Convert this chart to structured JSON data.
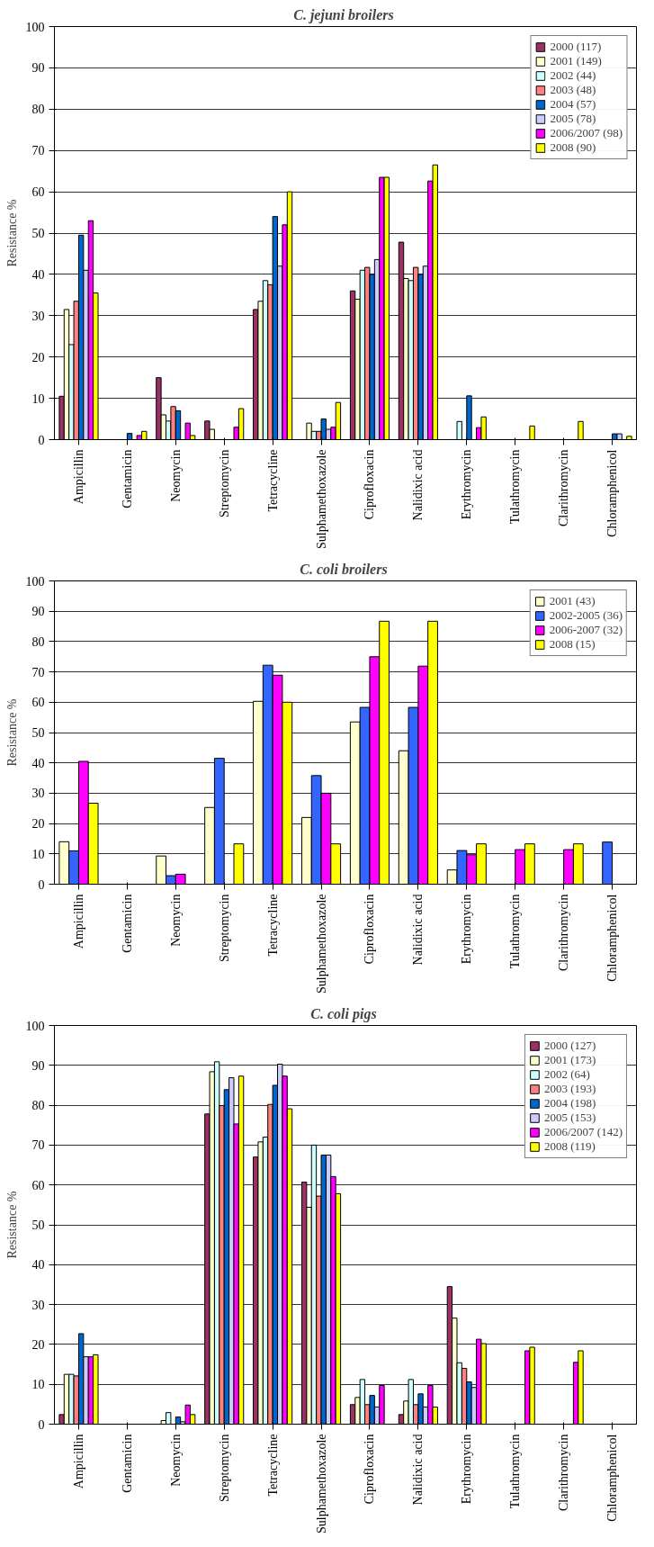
{
  "chart_data": [
    {
      "type": "bar",
      "title": "C. jejuni  broilers",
      "ylabel": "Resistance %",
      "categories": [
        "Ampicillin",
        "Gentamicin",
        "Neomycin",
        "Streptomycin",
        "Tetracycline",
        "Sulphamethoxazole",
        "Ciprofloxacin",
        "Nalidixic acid",
        "Erythromycin",
        "Tulathromycin",
        "Clarithromycin",
        "Chloramphenicol"
      ],
      "ylim": [
        0,
        100
      ],
      "yticks": [
        0,
        10,
        20,
        30,
        40,
        50,
        60,
        70,
        80,
        90,
        100
      ],
      "grid": "y",
      "legend": "top right",
      "series": [
        {
          "name": "2000 (117)",
          "color": "#993366",
          "values": [
            10.5,
            null,
            15,
            4.5,
            31.5,
            null,
            36,
            47.8,
            null,
            null,
            null,
            null
          ]
        },
        {
          "name": "2001 (149)",
          "color": "#ffffcc",
          "values": [
            31.5,
            null,
            6,
            2.5,
            33.5,
            4,
            34,
            39,
            null,
            null,
            null,
            null
          ]
        },
        {
          "name": "2002 (44)",
          "color": "#ccffff",
          "values": [
            23,
            null,
            4.5,
            null,
            38.5,
            2,
            41,
            38.5,
            4.4,
            null,
            null,
            null
          ]
        },
        {
          "name": "2003 (48)",
          "color": "#ff8080",
          "values": [
            33.5,
            null,
            8,
            null,
            37.5,
            2,
            41.7,
            41.7,
            null,
            null,
            null,
            null
          ]
        },
        {
          "name": "2004 (57)",
          "color": "#0066cc",
          "values": [
            49.5,
            1.5,
            7,
            null,
            54,
            5,
            40,
            40,
            10.6,
            null,
            null,
            1.4
          ]
        },
        {
          "name": "2005 (78)",
          "color": "#ccccff",
          "values": [
            41,
            null,
            null,
            null,
            42,
            2.5,
            43.6,
            42,
            null,
            null,
            null,
            1.4
          ]
        },
        {
          "name": "2006/2007 (98)",
          "color": "#ff00ff",
          "values": [
            53,
            1,
            4,
            3,
            52,
            3,
            63.5,
            62.6,
            2.9,
            null,
            null,
            null
          ]
        },
        {
          "name": "2008 (90)",
          "color": "#ffff00",
          "values": [
            35.5,
            2,
            1,
            7.5,
            60,
            9,
            63.5,
            66.5,
            5.5,
            3.3,
            4.4,
            0.8
          ]
        }
      ]
    },
    {
      "type": "bar",
      "title": "C. coli  broilers",
      "ylabel": "Resistance %",
      "categories": [
        "Ampicillin",
        "Gentamicin",
        "Neomycin",
        "Streptomycin",
        "Tetracycline",
        "Sulphamethoxazole",
        "Ciprofloxacin",
        "Nalidixic acid",
        "Erythromycin",
        "Tulathromycin",
        "Clarithromycin",
        "Chloramphenicol"
      ],
      "ylim": [
        0,
        100
      ],
      "yticks": [
        0,
        10,
        20,
        30,
        40,
        50,
        60,
        70,
        80,
        90,
        100
      ],
      "grid": "y",
      "legend": "top right",
      "series": [
        {
          "name": "2001 (43)",
          "color": "#ffffcc",
          "values": [
            14,
            null,
            9.3,
            25.3,
            60.3,
            22,
            53.5,
            44,
            4.7,
            null,
            null,
            null
          ]
        },
        {
          "name": "2002-2005 (36)",
          "color": "#3366ff",
          "values": [
            11,
            null,
            2.8,
            41.5,
            72.2,
            35.8,
            58.3,
            58.3,
            11.1,
            null,
            null,
            13.9
          ]
        },
        {
          "name": "2006-2007 (32)",
          "color": "#ff00ff",
          "values": [
            40.5,
            null,
            3.3,
            null,
            68.9,
            30,
            75,
            71.9,
            9.7,
            11.4,
            11.4,
            null
          ]
        },
        {
          "name": "2008 (15)",
          "color": "#ffff00",
          "values": [
            26.7,
            null,
            null,
            13.3,
            60,
            13.3,
            86.7,
            86.7,
            13.3,
            13.3,
            13.3,
            null
          ]
        }
      ]
    },
    {
      "type": "bar",
      "title": "C. coli  pigs",
      "ylabel": "Resistance %",
      "categories": [
        "Ampicillin",
        "Gentamicin",
        "Neomycin",
        "Streptomycin",
        "Tetracycline",
        "Sulphamethoxazole",
        "Ciprofloxacin",
        "Nalidixic acid",
        "Erythromycin",
        "Tulathromycin",
        "Clarithromycin",
        "Chloramphenicol"
      ],
      "ylim": [
        0,
        100
      ],
      "yticks": [
        0,
        10,
        20,
        30,
        40,
        50,
        60,
        70,
        80,
        90,
        100
      ],
      "grid": "y",
      "legend": "top right",
      "series": [
        {
          "name": "2000 (127)",
          "color": "#993366",
          "values": [
            2.4,
            null,
            null,
            77.8,
            67,
            60.7,
            4.9,
            2.4,
            34.5,
            null,
            null,
            null
          ]
        },
        {
          "name": "2001 (173)",
          "color": "#ffffcc",
          "values": [
            12.5,
            null,
            0.9,
            88.4,
            70.8,
            54.4,
            6.7,
            5.8,
            26.6,
            null,
            null,
            null
          ]
        },
        {
          "name": "2002 (64)",
          "color": "#ccffff",
          "values": [
            12.5,
            null,
            2.9,
            90.9,
            72,
            70,
            11.2,
            11.2,
            15.4,
            null,
            null,
            null
          ]
        },
        {
          "name": "2003 (193)",
          "color": "#ff8080",
          "values": [
            12.1,
            null,
            null,
            79.9,
            80.2,
            57.2,
            4.9,
            4.9,
            14,
            null,
            null,
            null
          ]
        },
        {
          "name": "2004 (198)",
          "color": "#0066cc",
          "values": [
            22.7,
            null,
            1.8,
            83.9,
            85,
            67.5,
            7.2,
            7.6,
            10.6,
            null,
            null,
            null
          ]
        },
        {
          "name": "2005 (153)",
          "color": "#ccccff",
          "values": [
            16.9,
            null,
            0.6,
            86.9,
            90.3,
            67.5,
            4.3,
            4.3,
            9.2,
            null,
            null,
            null
          ]
        },
        {
          "name": "2006/2007 (142)",
          "color": "#ff00ff",
          "values": [
            16.9,
            null,
            4.8,
            75.3,
            87.3,
            62.1,
            9.7,
            9.7,
            21.3,
            18.4,
            15.5,
            null
          ]
        },
        {
          "name": "2008 (119)",
          "color": "#ffff00",
          "values": [
            17.4,
            null,
            2.4,
            87.3,
            79.1,
            57.8,
            null,
            4.3,
            20.2,
            19.3,
            18.4,
            null
          ]
        }
      ]
    }
  ]
}
